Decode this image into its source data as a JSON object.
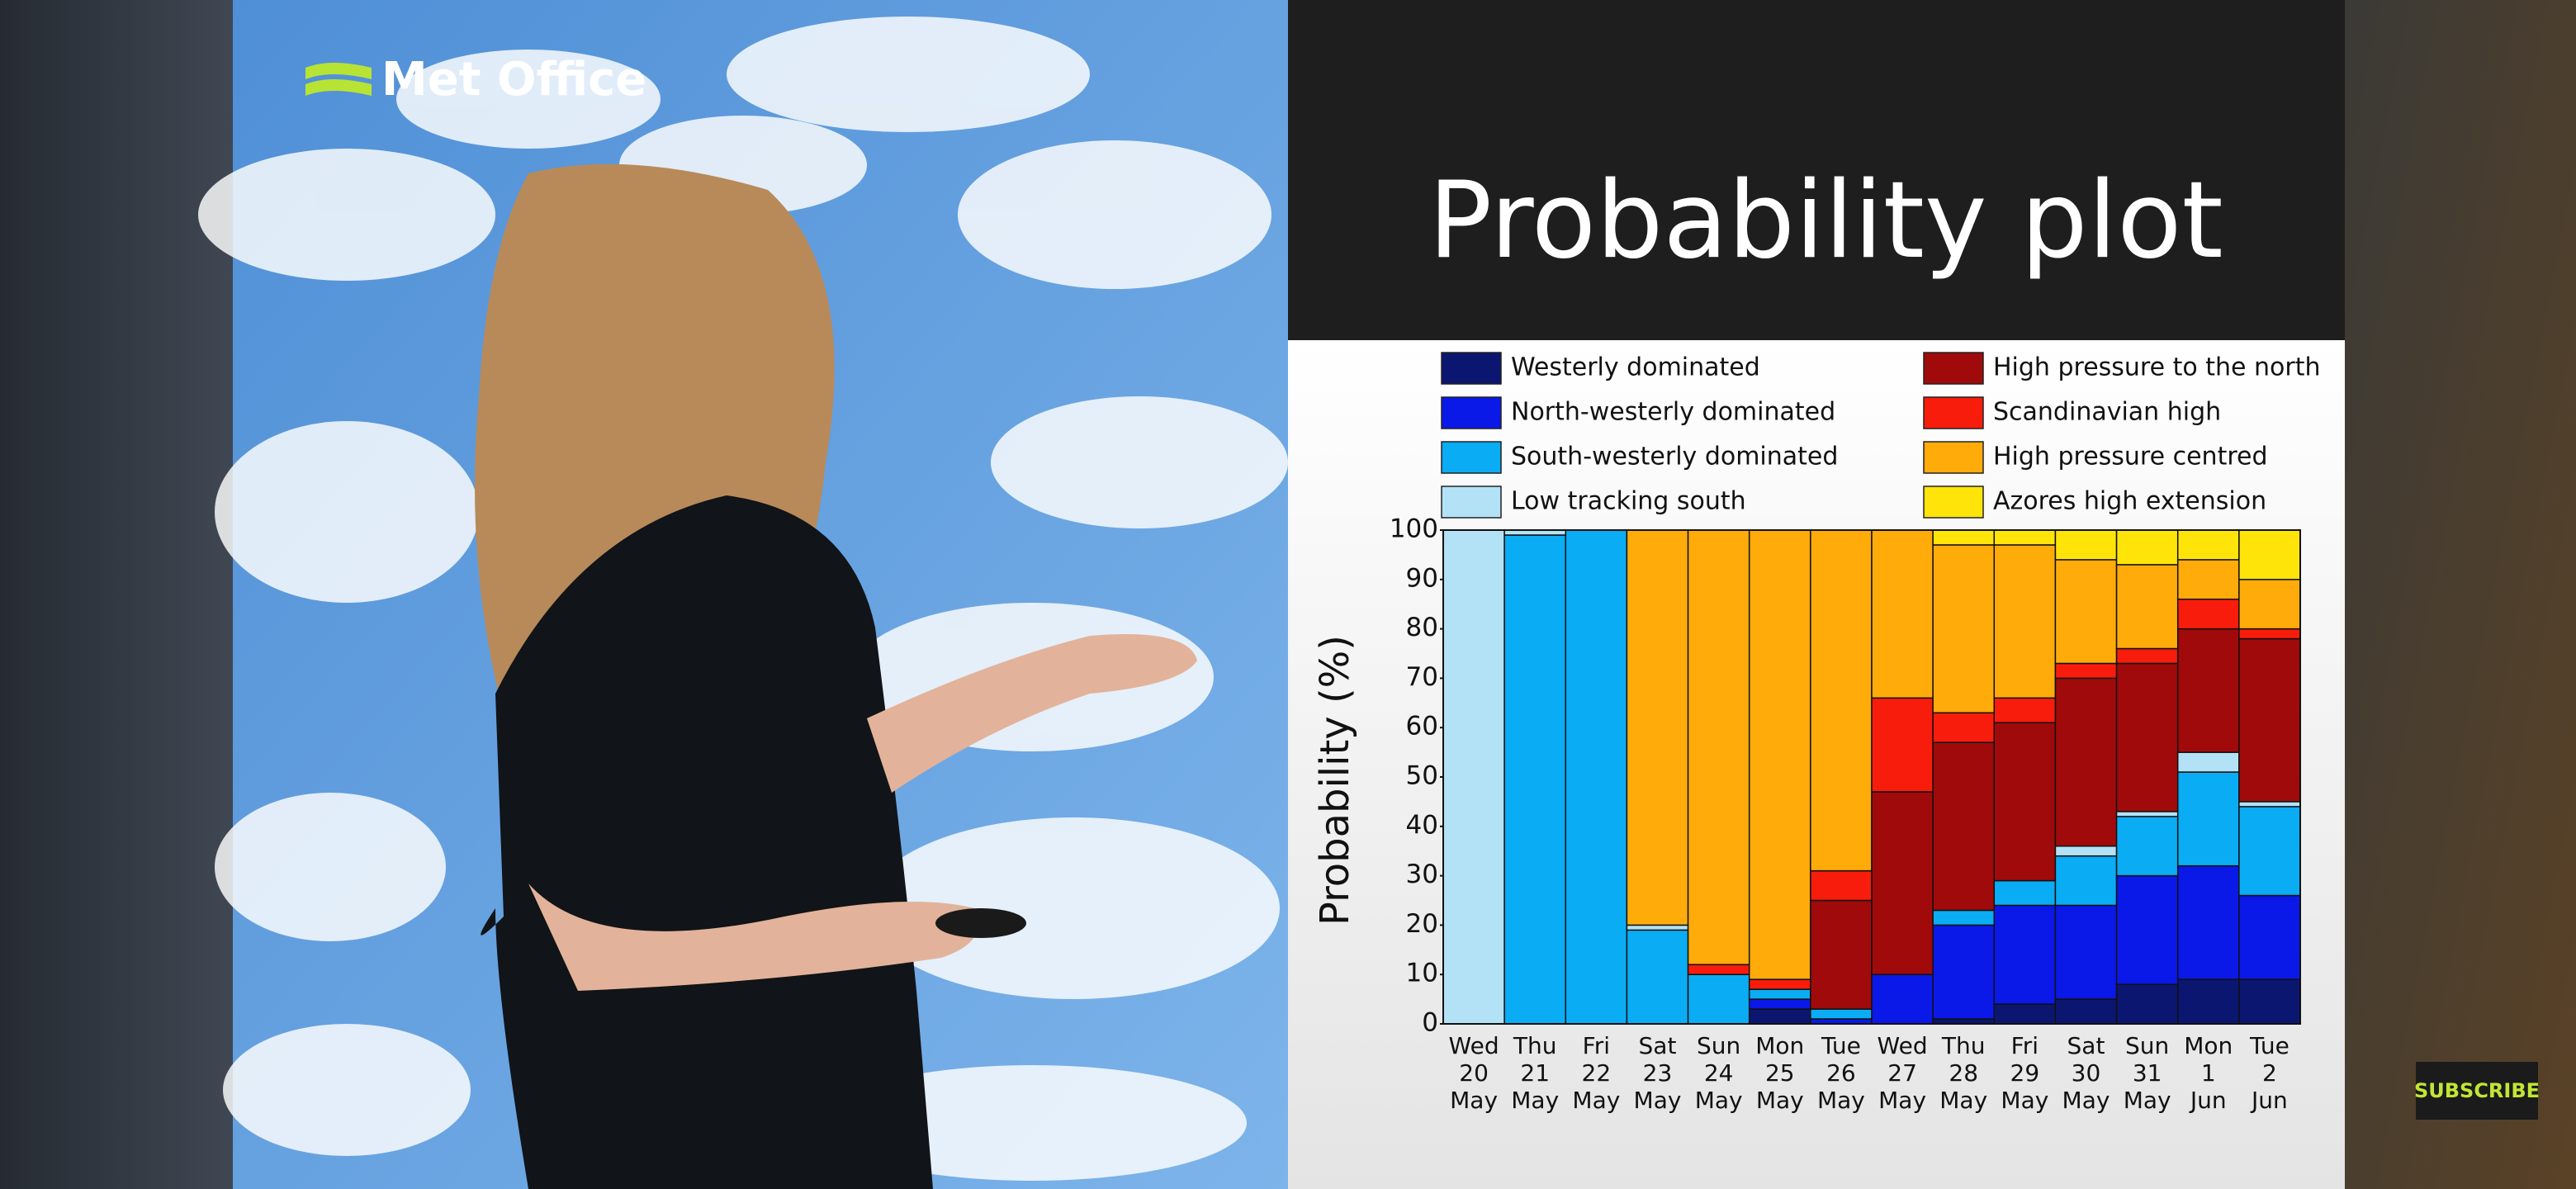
{
  "brand": "Met Office",
  "subscribe": "SUBSCRIBE",
  "chart_data": {
    "type": "stacked-bar",
    "title": "Probability plot",
    "y_label": "Probability (%)",
    "categories": [
      [
        "Wed",
        "20",
        "May"
      ],
      [
        "Thu",
        "21",
        "May"
      ],
      [
        "Fri",
        "22",
        "May"
      ],
      [
        "Sat",
        "23",
        "May"
      ],
      [
        "Sun",
        "24",
        "May"
      ],
      [
        "Mon",
        "25",
        "May"
      ],
      [
        "Tue",
        "26",
        "May"
      ],
      [
        "Wed",
        "27",
        "May"
      ],
      [
        "Thu",
        "28",
        "May"
      ],
      [
        "Fri",
        "29",
        "May"
      ],
      [
        "Sat",
        "30",
        "May"
      ],
      [
        "Sun",
        "31",
        "May"
      ],
      [
        "Mon",
        "1",
        "Jun"
      ],
      [
        "Tue",
        "2",
        "Jun"
      ]
    ],
    "series": [
      {
        "name": "Westerly dominated",
        "color": "#0b1670",
        "values": [
          0,
          0,
          0,
          0,
          0,
          3,
          0,
          0,
          1,
          4,
          5,
          8,
          9,
          9
        ]
      },
      {
        "name": "North-westerly dominated",
        "color": "#0a18e8",
        "values": [
          0,
          0,
          0,
          0,
          0,
          2,
          1,
          10,
          19,
          20,
          19,
          22,
          23,
          17
        ]
      },
      {
        "name": "South-westerly dominated",
        "color": "#0aacf4",
        "values": [
          0,
          99,
          100,
          19,
          10,
          2,
          2,
          0,
          3,
          5,
          10,
          12,
          19,
          18
        ]
      },
      {
        "name": "Low tracking south",
        "color": "#b3e2f6",
        "values": [
          100,
          1,
          0,
          1,
          0,
          0,
          0,
          0,
          0,
          0,
          2,
          1,
          4,
          1
        ]
      },
      {
        "name": "High pressure to the north",
        "color": "#a00a0a",
        "values": [
          0,
          0,
          0,
          0,
          0,
          0,
          22,
          37,
          34,
          32,
          34,
          30,
          25,
          33
        ]
      },
      {
        "name": "Scandinavian high",
        "color": "#f81c0c",
        "values": [
          0,
          0,
          0,
          0,
          2,
          2,
          6,
          19,
          6,
          5,
          3,
          3,
          6,
          2
        ]
      },
      {
        "name": "High pressure centred",
        "color": "#ffab0a",
        "values": [
          0,
          0,
          0,
          80,
          88,
          91,
          69,
          34,
          34,
          31,
          21,
          17,
          8,
          10
        ]
      },
      {
        "name": "Azores high extension",
        "color": "#ffe40a",
        "values": [
          0,
          0,
          0,
          0,
          0,
          0,
          0,
          0,
          3,
          3,
          6,
          7,
          6,
          10
        ]
      }
    ],
    "ylim": [
      0,
      100
    ],
    "yticks": [
      0,
      10,
      20,
      30,
      40,
      50,
      60,
      70,
      80,
      90,
      100
    ]
  }
}
